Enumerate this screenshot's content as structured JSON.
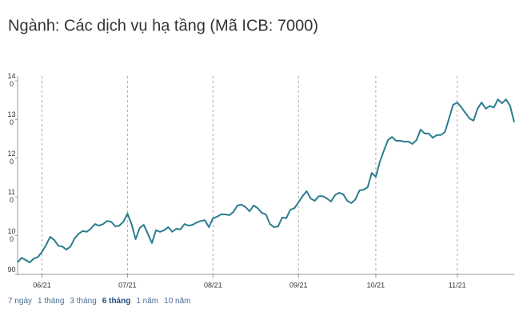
{
  "chart_data": {
    "type": "line",
    "title": "Ngành: Các dịch vụ hạ tầng (Mã ICB: 7000)",
    "categories": [
      null,
      null,
      null,
      null,
      null,
      null,
      "06/21",
      null,
      null,
      null,
      null,
      null,
      null,
      null,
      null,
      null,
      null,
      null,
      null,
      null,
      null,
      null,
      null,
      null,
      null,
      null,
      null,
      "07/21",
      null,
      null,
      null,
      null,
      null,
      null,
      null,
      null,
      null,
      null,
      null,
      null,
      null,
      null,
      null,
      null,
      null,
      null,
      null,
      null,
      "08/21",
      null,
      null,
      null,
      null,
      null,
      null,
      null,
      null,
      null,
      null,
      null,
      null,
      null,
      null,
      null,
      null,
      null,
      null,
      null,
      null,
      "09/21",
      null,
      null,
      null,
      null,
      null,
      null,
      null,
      null,
      null,
      null,
      null,
      null,
      null,
      null,
      null,
      null,
      null,
      null,
      "10/21",
      null,
      null,
      null,
      null,
      null,
      null,
      null,
      null,
      null,
      null,
      null,
      null,
      null,
      null,
      null,
      null,
      null,
      null,
      null,
      "11/21",
      null,
      null,
      null,
      null,
      null,
      null,
      null,
      null,
      null,
      null,
      null,
      null,
      null,
      null
    ],
    "values": [
      93.1,
      94.3,
      93.7,
      93.1,
      94.1,
      94.5,
      95.8,
      97.6,
      99.7,
      98.9,
      97.4,
      97.2,
      96.4,
      97.2,
      99.3,
      100.5,
      101.2,
      101.0,
      101.8,
      103.0,
      102.6,
      103.0,
      103.8,
      103.6,
      102.4,
      102.6,
      103.6,
      105.7,
      103.0,
      99.1,
      102.0,
      102.8,
      100.5,
      98.1,
      101.4,
      101.0,
      101.4,
      102.2,
      101.0,
      101.8,
      101.6,
      103.0,
      102.6,
      102.8,
      103.4,
      103.8,
      104.0,
      102.2,
      104.5,
      104.9,
      105.5,
      105.5,
      105.3,
      106.1,
      107.8,
      108.0,
      107.4,
      106.3,
      107.8,
      107.1,
      105.9,
      105.5,
      103.0,
      102.2,
      102.4,
      104.7,
      104.5,
      106.7,
      107.1,
      108.6,
      110.2,
      111.5,
      109.6,
      109.0,
      110.2,
      110.2,
      109.6,
      108.8,
      110.5,
      111.1,
      110.7,
      109.0,
      108.4,
      109.4,
      111.7,
      111.9,
      112.5,
      116.2,
      115.2,
      119.1,
      122.0,
      124.7,
      125.5,
      124.5,
      124.5,
      124.3,
      124.3,
      123.7,
      124.7,
      127.4,
      126.4,
      126.4,
      125.3,
      126.0,
      126.0,
      126.8,
      130.3,
      133.8,
      134.4,
      133.2,
      131.7,
      130.3,
      129.7,
      132.8,
      134.4,
      132.8,
      133.5,
      133.1,
      135.2,
      134.2,
      135.2,
      133.5,
      129.3
    ],
    "color": "#2b7d8e",
    "ylim": [
      90,
      140
    ],
    "yticks": [
      90,
      100,
      110,
      120,
      130,
      140
    ],
    "grid": false,
    "xgrid": true
  },
  "range_buttons": [
    {
      "label": "7 ngày",
      "selected": false
    },
    {
      "label": "1 tháng",
      "selected": false
    },
    {
      "label": "3 tháng",
      "selected": false
    },
    {
      "label": "6 tháng",
      "selected": true
    },
    {
      "label": "1 năm",
      "selected": false
    },
    {
      "label": "10 năm",
      "selected": false
    }
  ]
}
